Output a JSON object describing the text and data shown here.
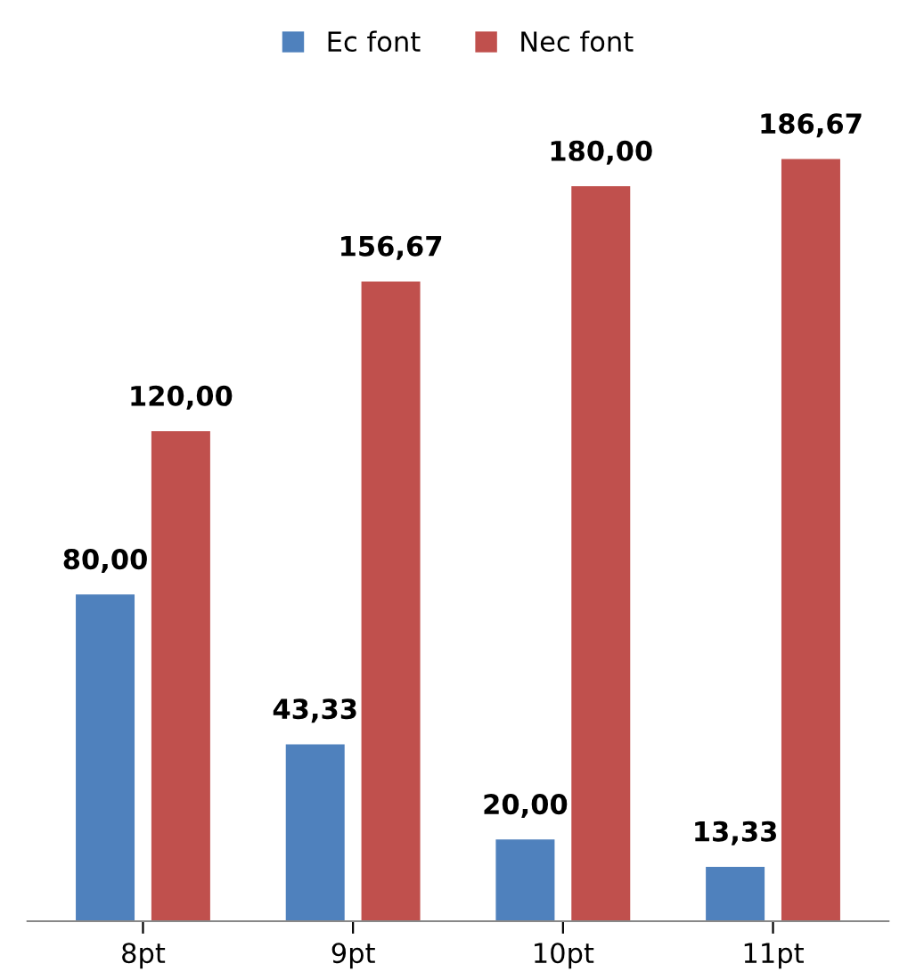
{
  "chart_data": {
    "type": "bar",
    "categories": [
      "8pt",
      "9pt",
      "10pt",
      "11pt"
    ],
    "series": [
      {
        "name": "Ec font",
        "color": "#4f81bd",
        "values": [
          80.0,
          43.33,
          20.0,
          13.33
        ],
        "value_labels": [
          "80,00",
          "43,33",
          "20,00",
          "13,33"
        ]
      },
      {
        "name": "Nec font",
        "color": "#c0504d",
        "values": [
          120.0,
          156.67,
          180.0,
          186.67
        ],
        "value_labels": [
          "120,00",
          "156,67",
          "180,00",
          "186,67"
        ]
      }
    ],
    "legend": "top",
    "grid": false
  }
}
